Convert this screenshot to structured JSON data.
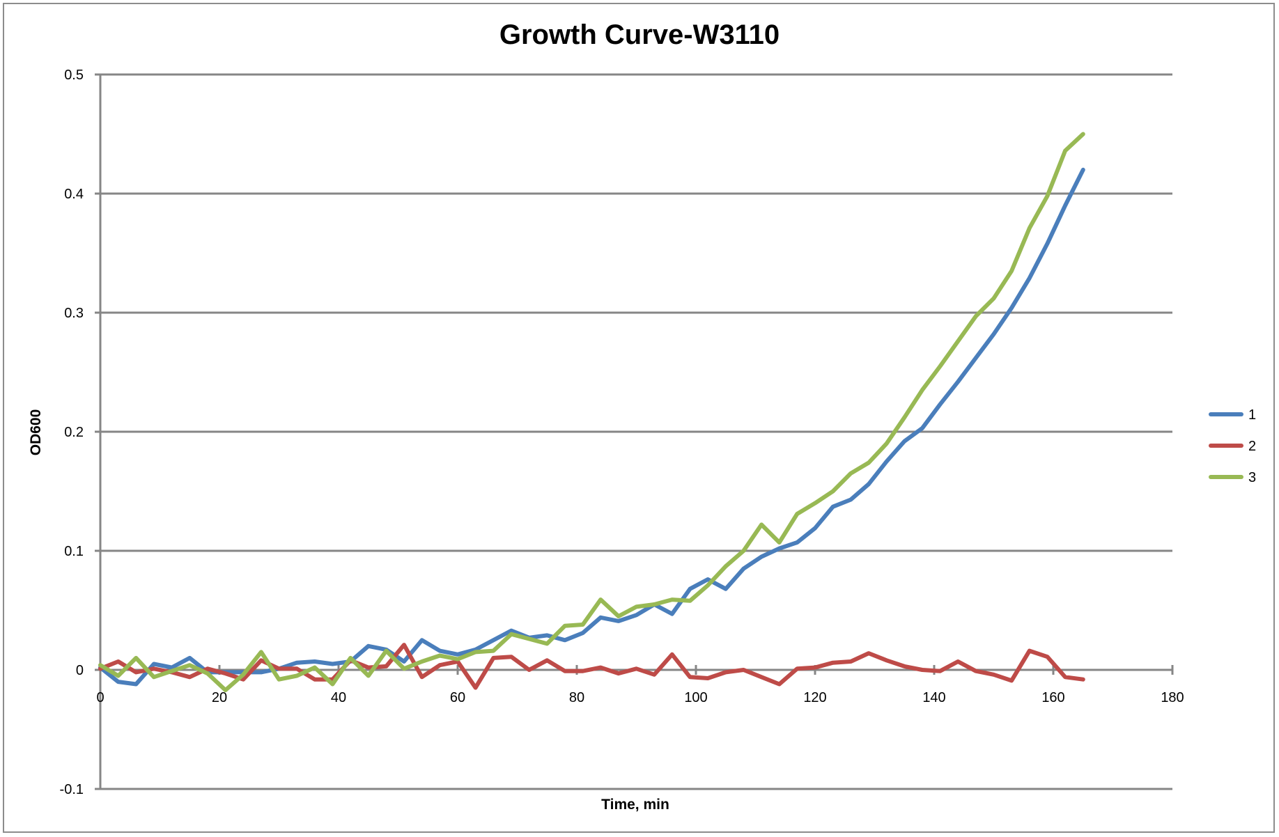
{
  "chart_data": {
    "type": "line",
    "title": "Growth Curve-W3110",
    "xlabel": "Time, min",
    "ylabel": "OD600",
    "xlim": [
      0,
      180
    ],
    "ylim": [
      -0.1,
      0.5
    ],
    "xticks": [
      "0",
      "20",
      "40",
      "60",
      "80",
      "100",
      "120",
      "140",
      "160",
      "180"
    ],
    "yticks": [
      "-0.1",
      "0",
      "0.1",
      "0.2",
      "0.3",
      "0.4",
      "0.5"
    ],
    "grid": "horizontal",
    "legend_position": "right",
    "x": [
      0,
      3,
      6,
      9,
      12,
      15,
      18,
      21,
      24,
      27,
      30,
      33,
      36,
      39,
      42,
      45,
      48,
      51,
      54,
      57,
      60,
      63,
      66,
      69,
      72,
      75,
      78,
      81,
      84,
      87,
      90,
      93,
      96,
      99,
      102,
      105,
      108,
      111,
      114,
      117,
      120,
      123,
      126,
      129,
      132,
      135,
      138,
      141,
      144,
      147,
      150,
      153,
      156,
      159,
      162,
      165
    ],
    "series": [
      {
        "name": "1",
        "color": "#4a7ebb",
        "values": [
          0.002,
          -0.01,
          -0.012,
          0.005,
          0.002,
          0.01,
          -0.002,
          -0.002,
          -0.002,
          -0.002,
          0.001,
          0.006,
          0.007,
          0.005,
          0.007,
          0.02,
          0.017,
          0.007,
          0.025,
          0.016,
          0.013,
          0.017,
          0.025,
          0.033,
          0.027,
          0.029,
          0.025,
          0.031,
          0.044,
          0.041,
          0.046,
          0.055,
          0.047,
          0.068,
          0.076,
          0.068,
          0.085,
          0.095,
          0.102,
          0.107,
          0.119,
          0.137,
          0.143,
          0.156,
          0.175,
          0.192,
          0.203,
          0.223,
          0.242,
          0.262,
          0.282,
          0.304,
          0.329,
          0.358,
          0.39,
          0.42
        ]
      },
      {
        "name": "2",
        "color": "#be4b48",
        "values": [
          0.001,
          0.007,
          -0.002,
          0.001,
          -0.002,
          -0.006,
          0.001,
          -0.003,
          -0.008,
          0.008,
          0.001,
          0.001,
          -0.008,
          -0.008,
          0.008,
          0.002,
          0.003,
          0.021,
          -0.006,
          0.004,
          0.007,
          -0.015,
          0.01,
          0.011,
          0.0,
          0.008,
          -0.001,
          -0.001,
          0.002,
          -0.003,
          0.001,
          -0.004,
          0.013,
          -0.006,
          -0.007,
          -0.002,
          0.0,
          -0.006,
          -0.012,
          0.001,
          0.002,
          0.006,
          0.007,
          0.014,
          0.008,
          0.003,
          -0.0,
          -0.001,
          0.007,
          -0.001,
          -0.004,
          -0.009,
          0.016,
          0.011,
          -0.006,
          -0.008
        ]
      },
      {
        "name": "3",
        "color": "#98b954",
        "values": [
          0.004,
          -0.005,
          0.01,
          -0.006,
          -0.001,
          0.004,
          -0.003,
          -0.017,
          -0.004,
          0.015,
          -0.008,
          -0.005,
          0.002,
          -0.012,
          0.01,
          -0.005,
          0.016,
          0.001,
          0.007,
          0.012,
          0.009,
          0.015,
          0.016,
          0.03,
          0.026,
          0.022,
          0.037,
          0.038,
          0.059,
          0.045,
          0.053,
          0.055,
          0.059,
          0.058,
          0.071,
          0.087,
          0.1,
          0.122,
          0.107,
          0.131,
          0.14,
          0.15,
          0.165,
          0.174,
          0.19,
          0.212,
          0.235,
          0.255,
          0.276,
          0.297,
          0.312,
          0.335,
          0.371,
          0.398,
          0.436,
          0.45
        ]
      }
    ]
  }
}
